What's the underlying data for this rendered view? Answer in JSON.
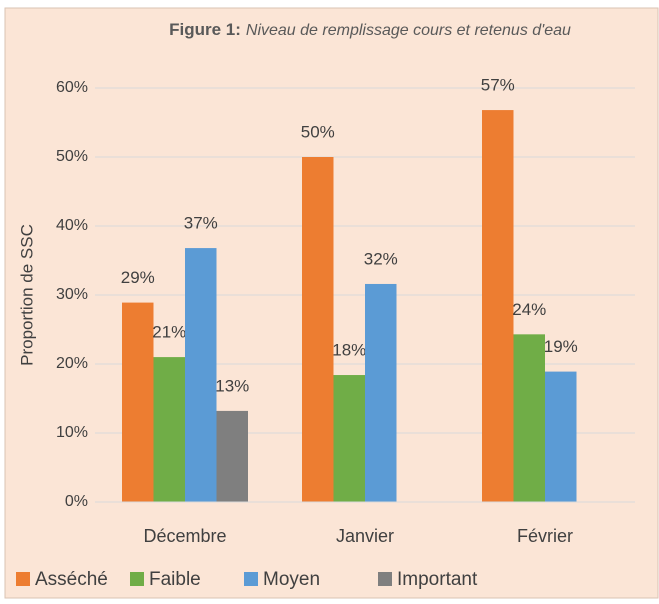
{
  "chart_data": {
    "type": "bar",
    "title_label": "Figure 1:",
    "title": "Niveau de remplissage cours et retenus d'eau",
    "y_label": "Proportion de SSC",
    "categories": [
      "Décembre",
      "Janvier",
      "Février"
    ],
    "series": [
      {
        "name": "Asséché",
        "color": "#ed7d31",
        "values": [
          28.9,
          50,
          56.8
        ],
        "value_labels": [
          "29%",
          "50%",
          "57%"
        ]
      },
      {
        "name": "Faible",
        "color": "#70ad47",
        "values": [
          21,
          18.4,
          24.3
        ],
        "value_labels": [
          "21%",
          "18%",
          "24%"
        ]
      },
      {
        "name": "Moyen",
        "color": "#5b9bd5",
        "values": [
          36.8,
          31.6,
          18.9
        ],
        "value_labels": [
          "37%",
          "32%",
          "19%"
        ]
      },
      {
        "name": "Important",
        "color": "#7f7f7f",
        "values": [
          13.2,
          null,
          null
        ],
        "value_labels": [
          "13%",
          null,
          null
        ]
      }
    ],
    "ylim": [
      0,
      60
    ],
    "yticks": [
      {
        "value": 0,
        "label": "0%"
      },
      {
        "value": 10,
        "label": "10%"
      },
      {
        "value": 20,
        "label": "20%"
      },
      {
        "value": 30,
        "label": "30%"
      },
      {
        "value": 40,
        "label": "40%"
      },
      {
        "value": 50,
        "label": "50%"
      },
      {
        "value": 60,
        "label": "60%"
      }
    ],
    "grid": true,
    "legend": "bottom"
  }
}
